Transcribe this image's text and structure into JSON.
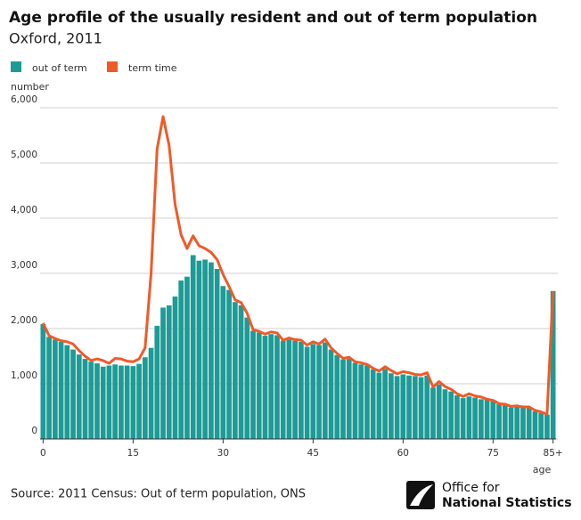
{
  "chart_data": {
    "type": "bar-line",
    "title": "Age profile of the usually resident and out of term population",
    "subtitle": "Oxford, 2011",
    "y_label": "number",
    "x_label": "age",
    "categories": [
      "0",
      null,
      null,
      null,
      null,
      null,
      null,
      null,
      null,
      null,
      null,
      null,
      null,
      null,
      null,
      "15",
      null,
      null,
      null,
      null,
      null,
      null,
      null,
      null,
      null,
      null,
      null,
      null,
      null,
      null,
      "30",
      null,
      null,
      null,
      null,
      null,
      null,
      null,
      null,
      null,
      null,
      null,
      null,
      null,
      null,
      "45",
      null,
      null,
      null,
      null,
      null,
      null,
      null,
      null,
      null,
      null,
      null,
      null,
      null,
      null,
      "60",
      null,
      null,
      null,
      null,
      null,
      null,
      null,
      null,
      null,
      null,
      null,
      null,
      null,
      null,
      "75",
      null,
      null,
      null,
      null,
      null,
      null,
      null,
      null,
      null,
      "85+"
    ],
    "series": [
      {
        "name": "out of term",
        "color": "#1e9b96",
        "values": [
          2080,
          1850,
          1800,
          1760,
          1700,
          1620,
          1530,
          1450,
          1400,
          1370,
          1310,
          1330,
          1350,
          1330,
          1330,
          1320,
          1360,
          1480,
          1650,
          2050,
          2380,
          2420,
          2580,
          2870,
          2940,
          3330,
          3230,
          3250,
          3200,
          3080,
          2770,
          2700,
          2480,
          2420,
          2200,
          1960,
          1930,
          1870,
          1900,
          1880,
          1780,
          1800,
          1780,
          1760,
          1670,
          1720,
          1700,
          1750,
          1620,
          1520,
          1440,
          1450,
          1380,
          1350,
          1330,
          1260,
          1200,
          1270,
          1190,
          1140,
          1170,
          1150,
          1140,
          1120,
          1150,
          930,
          990,
          900,
          860,
          790,
          740,
          770,
          750,
          720,
          710,
          680,
          630,
          620,
          570,
          580,
          570,
          560,
          500,
          470,
          440,
          2680
        ]
      },
      {
        "name": "term time",
        "color": "#f05a28",
        "values": [
          2100,
          1870,
          1820,
          1780,
          1760,
          1720,
          1600,
          1500,
          1420,
          1450,
          1420,
          1370,
          1460,
          1450,
          1410,
          1400,
          1450,
          1650,
          3000,
          5250,
          5840,
          5320,
          4250,
          3700,
          3450,
          3680,
          3500,
          3450,
          3380,
          3250,
          2980,
          2760,
          2520,
          2470,
          2280,
          1980,
          1950,
          1900,
          1940,
          1920,
          1790,
          1830,
          1800,
          1790,
          1700,
          1760,
          1720,
          1810,
          1650,
          1550,
          1460,
          1480,
          1400,
          1380,
          1350,
          1280,
          1230,
          1310,
          1240,
          1180,
          1220,
          1200,
          1170,
          1160,
          1200,
          940,
          1040,
          950,
          900,
          820,
          770,
          820,
          780,
          760,
          720,
          700,
          640,
          630,
          590,
          600,
          580,
          580,
          520,
          490,
          450,
          2680
        ]
      }
    ],
    "ylim": [
      0,
      6000
    ],
    "yticks": [
      0,
      {
        "value": 1000,
        "label": "1,000"
      },
      {
        "value": 2000,
        "label": "2,000"
      },
      {
        "value": 3000,
        "label": "3,000"
      },
      {
        "value": 4000,
        "label": "4,000"
      },
      {
        "value": 5000,
        "label": "5,000"
      },
      {
        "value": 6000,
        "label": "6,000"
      }
    ],
    "grid": true,
    "legend": "top-left"
  },
  "footer": {
    "source": "Source: 2011 Census: Out of term population, ONS",
    "logo": [
      "Office for",
      "National Statistics"
    ]
  }
}
